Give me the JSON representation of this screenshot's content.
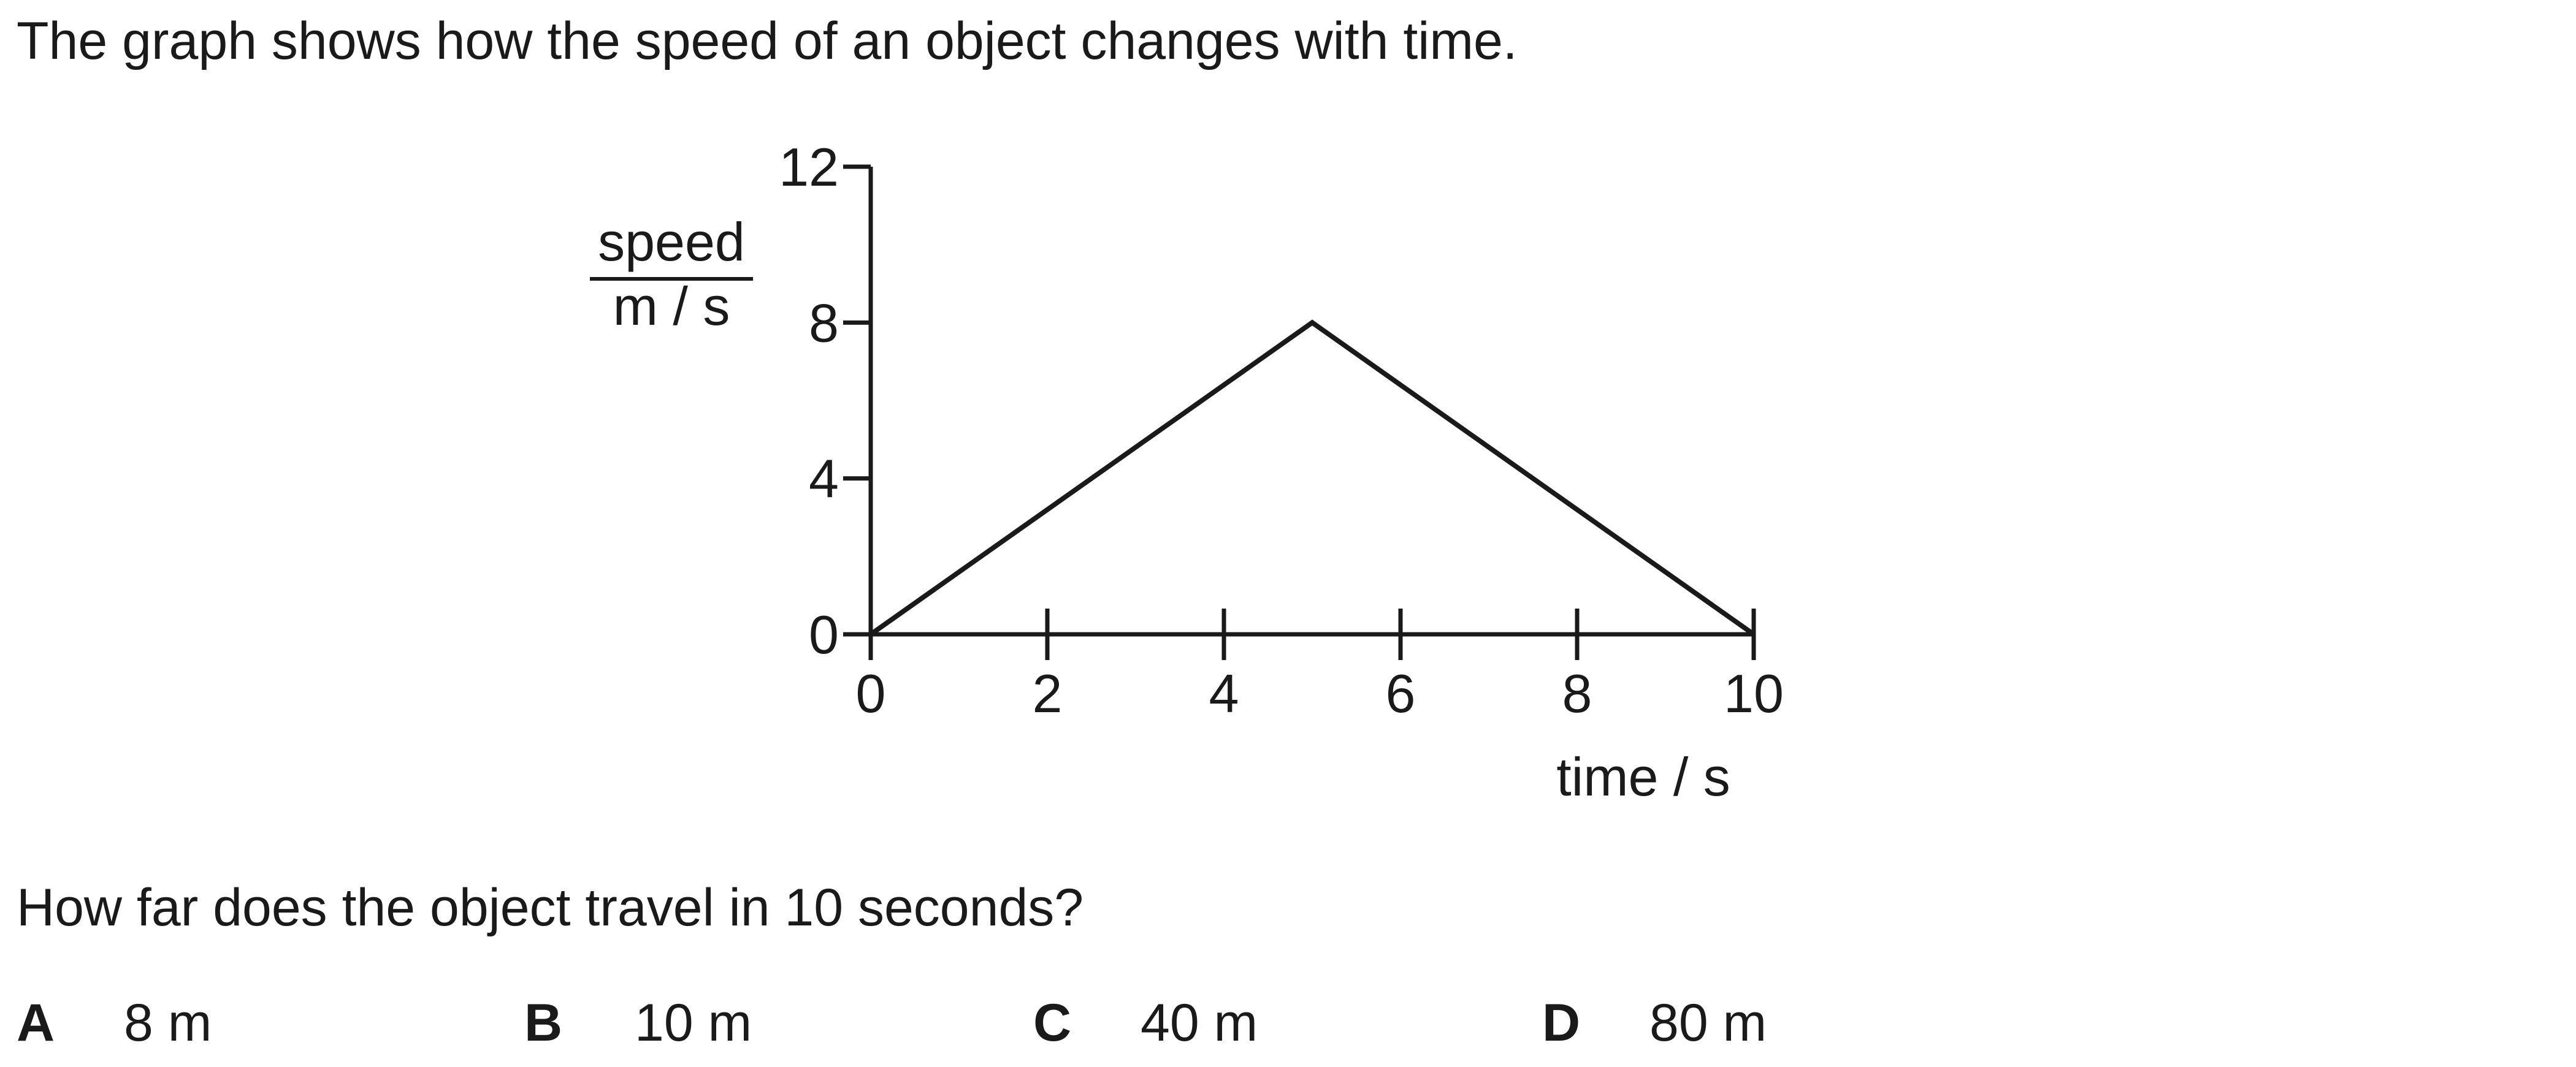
{
  "intro_text": "The graph shows how the speed of an object changes with time.",
  "question_text": "How far does the object travel in 10 seconds?",
  "options": [
    {
      "letter": "A",
      "value": "8 m"
    },
    {
      "letter": "B",
      "value": "10 m"
    },
    {
      "letter": "C",
      "value": "40 m"
    },
    {
      "letter": "D",
      "value": "80 m"
    }
  ],
  "chart_data": {
    "type": "line",
    "title": "",
    "xlabel": "time / s",
    "ylabel_top": "speed",
    "ylabel_bottom": "m / s",
    "xlim": [
      0,
      10
    ],
    "ylim": [
      0,
      12
    ],
    "x_ticks": [
      0,
      2,
      4,
      6,
      8,
      10
    ],
    "y_ticks": [
      0,
      4,
      8,
      12
    ],
    "grid": false,
    "series": [
      {
        "x": [
          0,
          5,
          10
        ],
        "y": [
          0,
          8,
          0
        ]
      }
    ]
  }
}
